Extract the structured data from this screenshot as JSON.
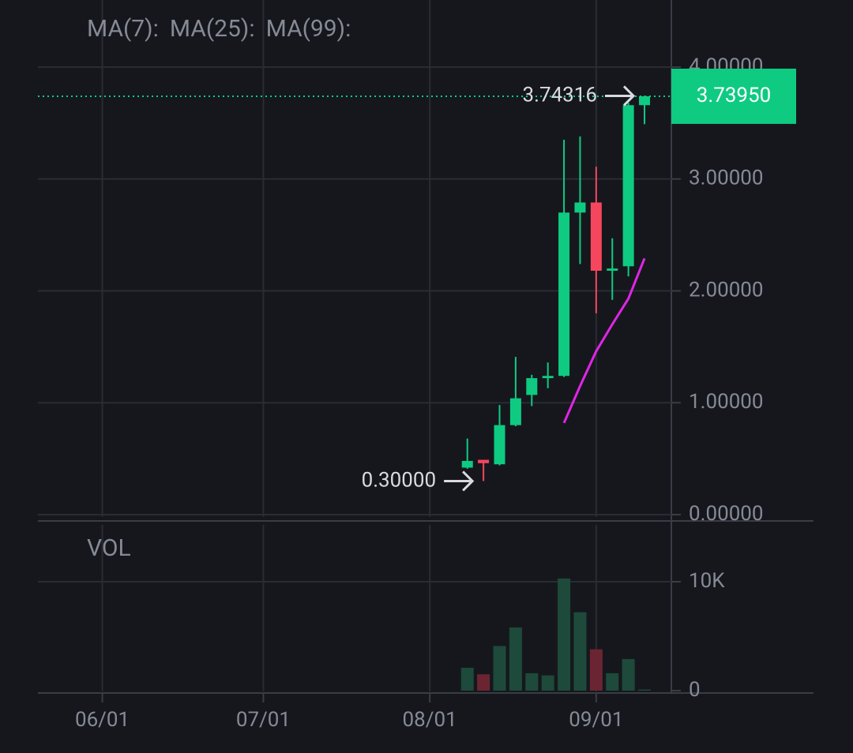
{
  "chart_data": {
    "type": "candlestick",
    "x": [
      "08/08",
      "08/11",
      "08/14",
      "08/17",
      "08/20",
      "08/23",
      "08/26",
      "08/29",
      "09/01",
      "09/04",
      "09/07",
      "09/10"
    ],
    "open": [
      0.42,
      0.49,
      0.45,
      0.8,
      1.07,
      1.22,
      1.24,
      2.7,
      2.79,
      2.18,
      2.22,
      3.66
    ],
    "high": [
      0.68,
      0.49,
      0.98,
      1.41,
      1.25,
      1.36,
      3.35,
      3.38,
      3.11,
      2.47,
      3.68,
      3.74316
    ],
    "low": [
      0.41,
      0.3,
      0.44,
      0.79,
      0.97,
      1.13,
      1.23,
      2.24,
      1.8,
      1.92,
      2.13,
      3.49
    ],
    "close": [
      0.48,
      0.46,
      0.8,
      1.04,
      1.22,
      1.24,
      2.7,
      2.79,
      2.18,
      2.2,
      3.66,
      3.7395
    ],
    "up_color": "#0ecb81",
    "down_color": "#f6465d",
    "xlim": [
      "05/20",
      "09/15"
    ],
    "xticks": [
      "06/01",
      "07/01",
      "08/01",
      "09/01"
    ],
    "ylim": [
      0,
      4.6
    ],
    "yticks": [
      {
        "value": 0,
        "label": "0.00000"
      },
      {
        "value": 1,
        "label": "1.00000"
      },
      {
        "value": 2,
        "label": "2.00000"
      },
      {
        "value": 3,
        "label": "3.00000"
      },
      {
        "value": 4,
        "label": "4.00000"
      }
    ],
    "grid": true,
    "ma": [
      {
        "name": "MA(7):",
        "color": "#e025e6",
        "values": [
          null,
          null,
          null,
          null,
          null,
          null,
          0.82,
          1.15,
          1.46,
          1.7,
          1.93,
          2.29
        ]
      },
      {
        "name": "MA(25):",
        "color": "#f0b90b",
        "values": [
          null,
          null,
          null,
          null,
          null,
          null,
          null,
          null,
          null,
          null,
          null,
          null
        ]
      },
      {
        "name": "MA(99):",
        "color": "#6f7bf7",
        "values": [
          null,
          null,
          null,
          null,
          null,
          null,
          null,
          null,
          null,
          null,
          null,
          null
        ]
      }
    ],
    "last_price": {
      "value": 3.7395,
      "label": "3.73950"
    },
    "annotations": [
      {
        "value": 3.74316,
        "label": "3.74316"
      },
      {
        "value": 0.3,
        "label": "0.30000"
      }
    ],
    "volume": {
      "title": "VOL",
      "values": [
        2100,
        1500,
        4100,
        5800,
        1600,
        1400,
        10300,
        7200,
        3800,
        1600,
        2900,
        100
      ],
      "up_color": "#1d4a3a",
      "down_color": "#6b2532",
      "ylim": [
        0,
        15000
      ],
      "yticks": [
        0,
        {
          "value": 10000,
          "label": "10K"
        }
      ]
    }
  }
}
